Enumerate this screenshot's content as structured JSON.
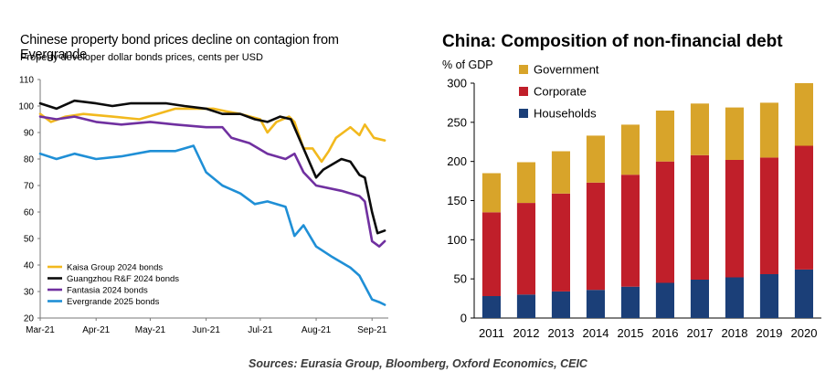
{
  "chart_data": [
    {
      "type": "line",
      "title": "Chinese property bond prices decline on contagion from Evergrande",
      "subtitle": "Property developer dollar bonds prices, cents per USD",
      "xlabel": "",
      "ylabel": "",
      "ylim": [
        20,
        110
      ],
      "yticks": [
        20,
        30,
        40,
        50,
        60,
        70,
        80,
        90,
        100,
        110
      ],
      "xlim": [
        "2021-03-01",
        "2021-09-10"
      ],
      "xticks": [
        {
          "date": "2021-03-01",
          "label": "Mar-21"
        },
        {
          "date": "2021-04-01",
          "label": "Apr-21"
        },
        {
          "date": "2021-05-01",
          "label": "May-21"
        },
        {
          "date": "2021-06-01",
          "label": "Jun-21"
        },
        {
          "date": "2021-07-01",
          "label": "Jul-21"
        },
        {
          "date": "2021-08-01",
          "label": "Aug-21"
        },
        {
          "date": "2021-09-01",
          "label": "Sep-21"
        }
      ],
      "legend_position": "bottom-left",
      "grid": false,
      "series": [
        {
          "name": "Kaisa Group 2024 bonds",
          "color": "#f2b91e",
          "points": [
            [
              "2021-03-01",
              97
            ],
            [
              "2021-03-07",
              94
            ],
            [
              "2021-03-15",
              96
            ],
            [
              "2021-03-25",
              97
            ],
            [
              "2021-04-10",
              96
            ],
            [
              "2021-04-25",
              95
            ],
            [
              "2021-05-05",
              97
            ],
            [
              "2021-05-15",
              99
            ],
            [
              "2021-05-25",
              99
            ],
            [
              "2021-06-05",
              99
            ],
            [
              "2021-06-12",
              98
            ],
            [
              "2021-06-20",
              97
            ],
            [
              "2021-07-01",
              95
            ],
            [
              "2021-07-05",
              90
            ],
            [
              "2021-07-10",
              94
            ],
            [
              "2021-07-17",
              96
            ],
            [
              "2021-07-20",
              94
            ],
            [
              "2021-07-25",
              84
            ],
            [
              "2021-07-30",
              84
            ],
            [
              "2021-08-04",
              79
            ],
            [
              "2021-08-08",
              83
            ],
            [
              "2021-08-12",
              88
            ],
            [
              "2021-08-20",
              92
            ],
            [
              "2021-08-25",
              89
            ],
            [
              "2021-08-28",
              93
            ],
            [
              "2021-09-02",
              88
            ],
            [
              "2021-09-08",
              87
            ]
          ]
        },
        {
          "name": "Guangzhou R&F 2024 bonds",
          "color": "#0b0b0b",
          "points": [
            [
              "2021-03-01",
              101
            ],
            [
              "2021-03-10",
              99
            ],
            [
              "2021-03-20",
              102
            ],
            [
              "2021-04-01",
              101
            ],
            [
              "2021-04-10",
              100
            ],
            [
              "2021-04-20",
              101
            ],
            [
              "2021-05-01",
              101
            ],
            [
              "2021-05-10",
              101
            ],
            [
              "2021-05-20",
              100
            ],
            [
              "2021-06-01",
              99
            ],
            [
              "2021-06-10",
              97
            ],
            [
              "2021-06-20",
              97
            ],
            [
              "2021-06-28",
              95
            ],
            [
              "2021-07-05",
              94
            ],
            [
              "2021-07-12",
              96
            ],
            [
              "2021-07-18",
              95
            ],
            [
              "2021-07-25",
              84
            ],
            [
              "2021-08-01",
              73
            ],
            [
              "2021-08-05",
              76
            ],
            [
              "2021-08-15",
              80
            ],
            [
              "2021-08-20",
              79
            ],
            [
              "2021-08-25",
              74
            ],
            [
              "2021-08-28",
              73
            ],
            [
              "2021-09-01",
              60
            ],
            [
              "2021-09-04",
              52
            ],
            [
              "2021-09-08",
              53
            ]
          ]
        },
        {
          "name": "Fantasia 2024 bonds",
          "color": "#7030a0",
          "points": [
            [
              "2021-03-01",
              96
            ],
            [
              "2021-03-10",
              95
            ],
            [
              "2021-03-20",
              96
            ],
            [
              "2021-04-01",
              94
            ],
            [
              "2021-04-15",
              93
            ],
            [
              "2021-05-01",
              94
            ],
            [
              "2021-05-15",
              93
            ],
            [
              "2021-06-01",
              92
            ],
            [
              "2021-06-10",
              92
            ],
            [
              "2021-06-15",
              88
            ],
            [
              "2021-06-25",
              86
            ],
            [
              "2021-07-05",
              82
            ],
            [
              "2021-07-15",
              80
            ],
            [
              "2021-07-20",
              82
            ],
            [
              "2021-07-25",
              75
            ],
            [
              "2021-08-01",
              70
            ],
            [
              "2021-08-15",
              68
            ],
            [
              "2021-08-25",
              66
            ],
            [
              "2021-08-28",
              64
            ],
            [
              "2021-09-01",
              49
            ],
            [
              "2021-09-05",
              47
            ],
            [
              "2021-09-08",
              49
            ]
          ]
        },
        {
          "name": "Evergrande 2025 bonds",
          "color": "#1f8fd6",
          "points": [
            [
              "2021-03-01",
              82
            ],
            [
              "2021-03-10",
              80
            ],
            [
              "2021-03-20",
              82
            ],
            [
              "2021-04-01",
              80
            ],
            [
              "2021-04-15",
              81
            ],
            [
              "2021-05-01",
              83
            ],
            [
              "2021-05-15",
              83
            ],
            [
              "2021-05-25",
              85
            ],
            [
              "2021-06-01",
              75
            ],
            [
              "2021-06-10",
              70
            ],
            [
              "2021-06-20",
              67
            ],
            [
              "2021-06-28",
              63
            ],
            [
              "2021-07-05",
              64
            ],
            [
              "2021-07-15",
              62
            ],
            [
              "2021-07-20",
              51
            ],
            [
              "2021-07-25",
              55
            ],
            [
              "2021-08-01",
              47
            ],
            [
              "2021-08-10",
              43
            ],
            [
              "2021-08-20",
              39
            ],
            [
              "2021-08-25",
              36
            ],
            [
              "2021-09-01",
              27
            ],
            [
              "2021-09-05",
              26
            ],
            [
              "2021-09-08",
              25
            ]
          ]
        }
      ]
    },
    {
      "type": "bar",
      "stacked": true,
      "title": "China: Composition of non-financial debt",
      "xlabel": "",
      "ylabel": "% of GDP",
      "ylim": [
        0,
        300
      ],
      "yticks": [
        0,
        50,
        100,
        150,
        200,
        250,
        300
      ],
      "legend_position": "top-left",
      "grid": false,
      "categories": [
        "2011",
        "2012",
        "2013",
        "2014",
        "2015",
        "2016",
        "2017",
        "2018",
        "2019",
        "2020"
      ],
      "series": [
        {
          "name": "Households",
          "color": "#1b3f78",
          "values": [
            28,
            30,
            34,
            36,
            40,
            45,
            49,
            52,
            56,
            62
          ]
        },
        {
          "name": "Corporate",
          "color": "#c01f2a",
          "values": [
            107,
            117,
            125,
            137,
            143,
            155,
            159,
            150,
            149,
            158
          ]
        },
        {
          "name": "Government",
          "color": "#d8a42a",
          "values": [
            50,
            52,
            54,
            60,
            64,
            65,
            66,
            67,
            70,
            80
          ]
        }
      ]
    }
  ],
  "footer": {
    "sources": "Sources: Eurasia Group, Bloomberg, Oxford Economics, CEIC"
  }
}
